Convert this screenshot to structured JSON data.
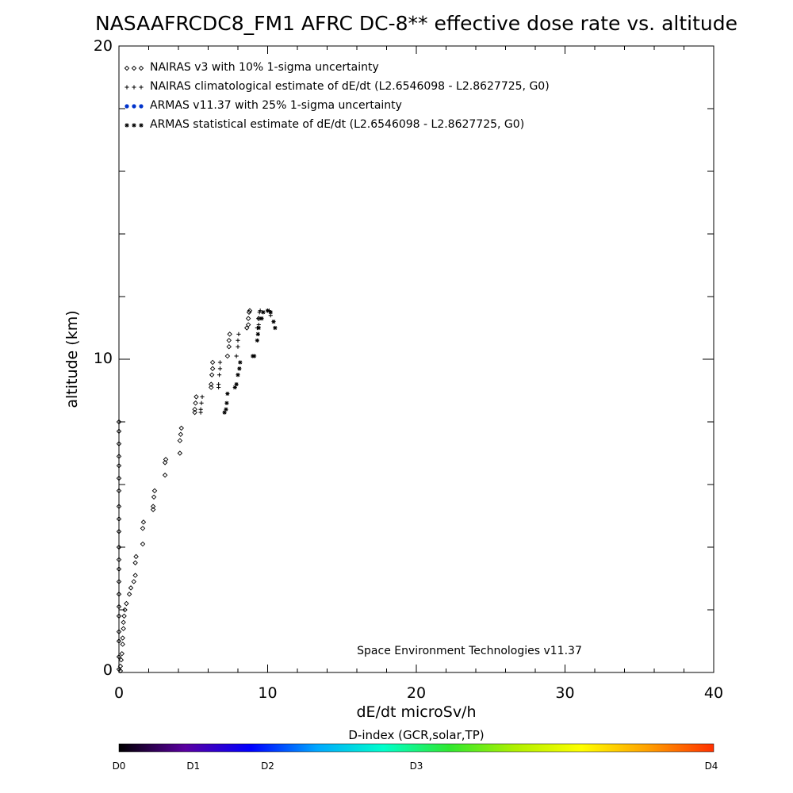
{
  "chart_data": {
    "type": "scatter",
    "title": "NASAAFRCDC8_FM1 AFRC DC-8** effective dose rate vs. altitude",
    "xlabel": "dE/dt microSv/h",
    "ylabel": "altitude (km)",
    "xlim": [
      0,
      40
    ],
    "ylim": [
      0,
      20
    ],
    "x_ticks": [
      "0",
      "10",
      "20",
      "30",
      "40"
    ],
    "y_ticks": [
      "0",
      "10",
      "20"
    ],
    "credit": "Space Environment Technologies v11.37",
    "legend_position": "top-left",
    "legend": [
      {
        "label": "NAIRAS v3 with 10% 1-sigma uncertainty",
        "marker": "diamond",
        "color": "#000000"
      },
      {
        "label": "NAIRAS climatological estimate of dE/dt (L2.6546098 - L2.8627725, G0)",
        "marker": "plus",
        "color": "#000000"
      },
      {
        "label": "ARMAS v11.37 with 25% 1-sigma uncertainty",
        "marker": "dot",
        "color": "#0033cc"
      },
      {
        "label": "ARMAS statistical estimate of dE/dt (L2.6546098 - L2.8627725, G0)",
        "marker": "asterisk",
        "color": "#000000"
      }
    ],
    "series": [
      {
        "name": "NAIRAS v3 with 10% 1-sigma uncertainty",
        "marker": "diamond",
        "points": [
          [
            0.1,
            0.05
          ],
          [
            0.1,
            0.2
          ],
          [
            0.15,
            0.4
          ],
          [
            0.2,
            0.6
          ],
          [
            0.25,
            0.9
          ],
          [
            0.25,
            1.1
          ],
          [
            0.3,
            1.4
          ],
          [
            0.3,
            1.6
          ],
          [
            0.35,
            1.8
          ],
          [
            0.4,
            2.0
          ],
          [
            0.5,
            2.2
          ],
          [
            0.7,
            2.5
          ],
          [
            0.8,
            2.7
          ],
          [
            1.0,
            2.9
          ],
          [
            1.1,
            3.1
          ],
          [
            1.1,
            3.5
          ],
          [
            1.15,
            3.7
          ],
          [
            1.6,
            4.1
          ],
          [
            1.6,
            4.6
          ],
          [
            1.65,
            4.8
          ],
          [
            2.3,
            5.2
          ],
          [
            2.3,
            5.3
          ],
          [
            2.35,
            5.6
          ],
          [
            2.4,
            5.8
          ],
          [
            3.1,
            6.3
          ],
          [
            3.1,
            6.7
          ],
          [
            3.15,
            6.8
          ],
          [
            4.1,
            7.0
          ],
          [
            4.1,
            7.4
          ],
          [
            4.15,
            7.6
          ],
          [
            4.2,
            7.8
          ],
          [
            5.1,
            8.3
          ],
          [
            5.1,
            8.4
          ],
          [
            5.15,
            8.6
          ],
          [
            5.2,
            8.8
          ],
          [
            6.2,
            9.1
          ],
          [
            6.2,
            9.2
          ],
          [
            6.25,
            9.5
          ],
          [
            6.3,
            9.7
          ],
          [
            6.3,
            9.9
          ],
          [
            7.3,
            10.1
          ],
          [
            7.4,
            10.4
          ],
          [
            7.4,
            10.6
          ],
          [
            7.45,
            10.8
          ],
          [
            8.6,
            11.0
          ],
          [
            8.7,
            11.1
          ],
          [
            8.7,
            11.3
          ],
          [
            8.75,
            11.5
          ],
          [
            8.8,
            11.55
          ],
          [
            9.4,
            11.3
          ]
        ]
      },
      {
        "name": "NAIRAS climatological estimate of dE/dt (L2.6546098 - L2.8627725, G0)",
        "marker": "plus",
        "points": [
          [
            5.5,
            8.3
          ],
          [
            5.5,
            8.4
          ],
          [
            5.55,
            8.6
          ],
          [
            5.6,
            8.8
          ],
          [
            6.7,
            9.1
          ],
          [
            6.7,
            9.2
          ],
          [
            6.75,
            9.5
          ],
          [
            6.8,
            9.7
          ],
          [
            6.8,
            9.9
          ],
          [
            7.9,
            10.1
          ],
          [
            8.0,
            10.4
          ],
          [
            8.0,
            10.6
          ],
          [
            8.05,
            10.8
          ],
          [
            9.3,
            11.0
          ],
          [
            9.4,
            11.1
          ],
          [
            9.4,
            11.3
          ],
          [
            9.45,
            11.5
          ],
          [
            9.5,
            11.55
          ],
          [
            10.1,
            11.55
          ],
          [
            10.2,
            11.4
          ]
        ]
      },
      {
        "name": "ARMAS v11.37 with 25% 1-sigma uncertainty",
        "marker": "dot",
        "points": []
      },
      {
        "name": "ARMAS statistical estimate of dE/dt (L2.6546098 - L2.8627725, G0)",
        "marker": "asterisk",
        "points": [
          [
            7.1,
            8.3
          ],
          [
            7.2,
            8.4
          ],
          [
            7.25,
            8.6
          ],
          [
            7.3,
            8.9
          ],
          [
            7.8,
            9.1
          ],
          [
            7.9,
            9.2
          ],
          [
            8.0,
            9.5
          ],
          [
            8.1,
            9.7
          ],
          [
            8.15,
            9.9
          ],
          [
            9.0,
            10.1
          ],
          [
            9.1,
            10.1
          ],
          [
            9.3,
            10.6
          ],
          [
            9.35,
            10.8
          ],
          [
            9.4,
            11.0
          ],
          [
            9.6,
            11.3
          ],
          [
            9.7,
            11.5
          ],
          [
            10.0,
            11.55
          ],
          [
            10.2,
            11.5
          ],
          [
            10.4,
            11.2
          ],
          [
            10.5,
            11.0
          ]
        ]
      },
      {
        "name": "zero-axis points",
        "marker": "diamond",
        "points": [
          [
            0,
            0.1
          ],
          [
            0,
            0.5
          ],
          [
            0,
            1.0
          ],
          [
            0,
            1.3
          ],
          [
            0,
            1.8
          ],
          [
            0,
            2.1
          ],
          [
            0,
            2.5
          ],
          [
            0,
            2.9
          ],
          [
            0,
            3.3
          ],
          [
            0,
            3.6
          ],
          [
            0,
            4.0
          ],
          [
            0,
            4.5
          ],
          [
            0,
            4.9
          ],
          [
            0,
            5.3
          ],
          [
            0,
            5.8
          ],
          [
            0,
            6.2
          ],
          [
            0,
            6.6
          ],
          [
            0,
            6.9
          ],
          [
            0,
            7.3
          ],
          [
            0,
            7.7
          ],
          [
            0,
            8.0
          ]
        ]
      }
    ]
  },
  "colorbar": {
    "title": "D-index (GCR,solar,TP)",
    "labels": [
      "D0",
      "D1",
      "D2",
      "D3",
      "D4"
    ],
    "label_fractions": [
      0,
      0.125,
      0.25,
      0.5,
      1.0
    ],
    "colors": [
      "#000000",
      "#5a00a0",
      "#0000ff",
      "#00a8ff",
      "#00ffcc",
      "#30e830",
      "#b0f000",
      "#ffff00",
      "#ffa000",
      "#ff3000"
    ]
  }
}
